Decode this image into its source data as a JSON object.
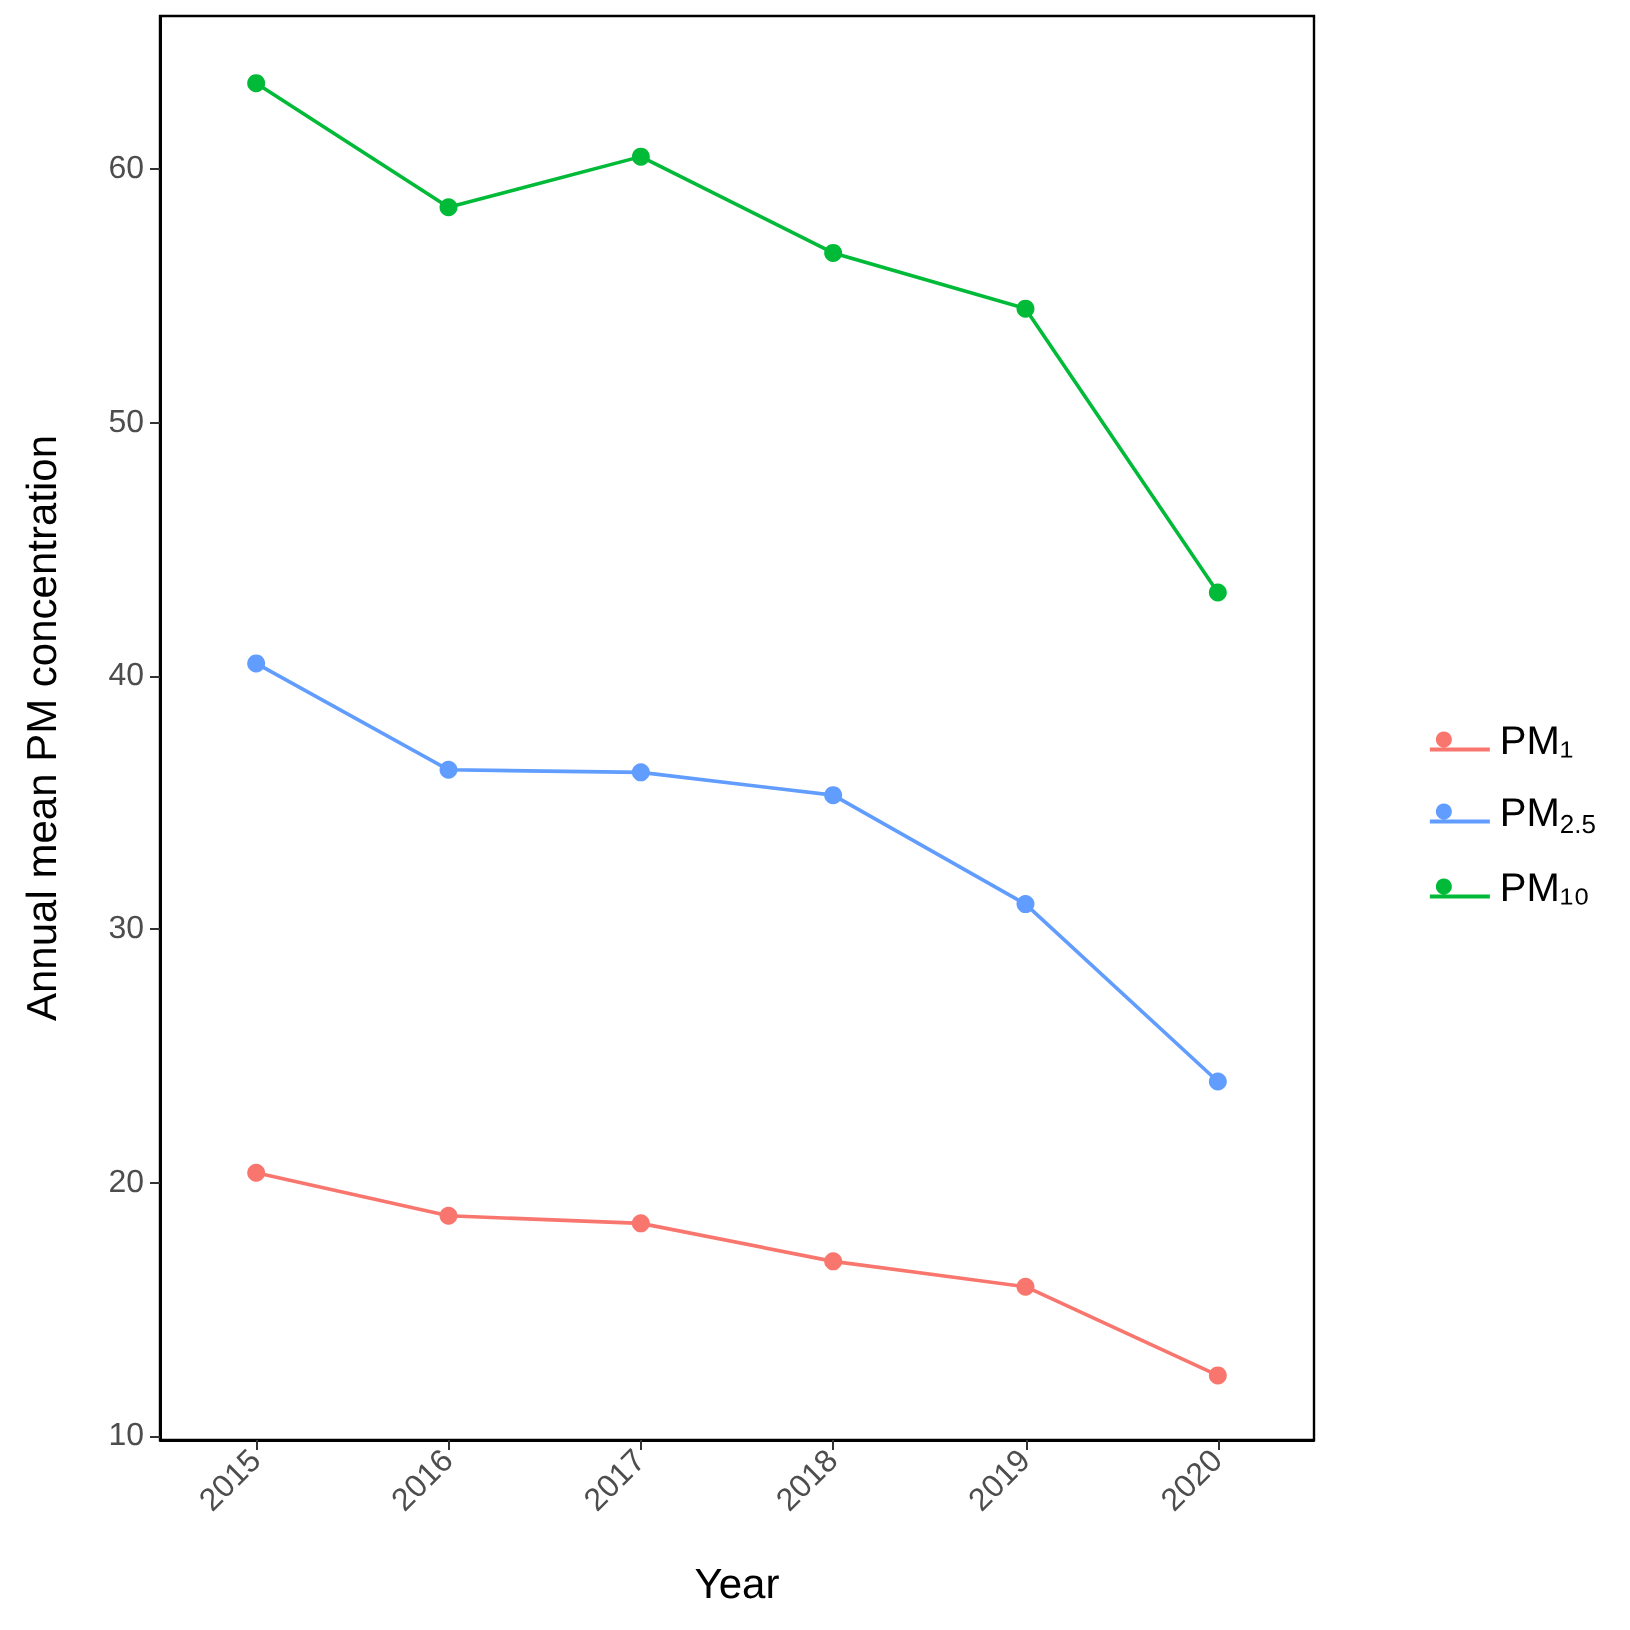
{
  "chart_data": {
    "type": "line",
    "xlabel": "Year",
    "ylabel": "Annual mean PM concentration",
    "categories": [
      "2015",
      "2016",
      "2017",
      "2018",
      "2019",
      "2020"
    ],
    "series": [
      {
        "name": "PM₁",
        "color": "#f8766d",
        "values": [
          20.4,
          18.7,
          18.4,
          16.9,
          15.9,
          12.4
        ]
      },
      {
        "name": "PM$_{2.5}$",
        "color": "#619cff",
        "values": [
          40.5,
          36.3,
          36.2,
          35.3,
          31.0,
          24.0
        ]
      },
      {
        "name": "PM₁₀",
        "color": "#00ba38",
        "values": [
          63.4,
          58.5,
          60.5,
          56.7,
          54.5,
          43.3
        ]
      }
    ],
    "ylim": [
      9.85,
      66.05
    ],
    "yticks": [
      10,
      20,
      30,
      40,
      50,
      60
    ],
    "grid": false,
    "legend": "right",
    "marker": "circle",
    "line_style": "solid"
  }
}
